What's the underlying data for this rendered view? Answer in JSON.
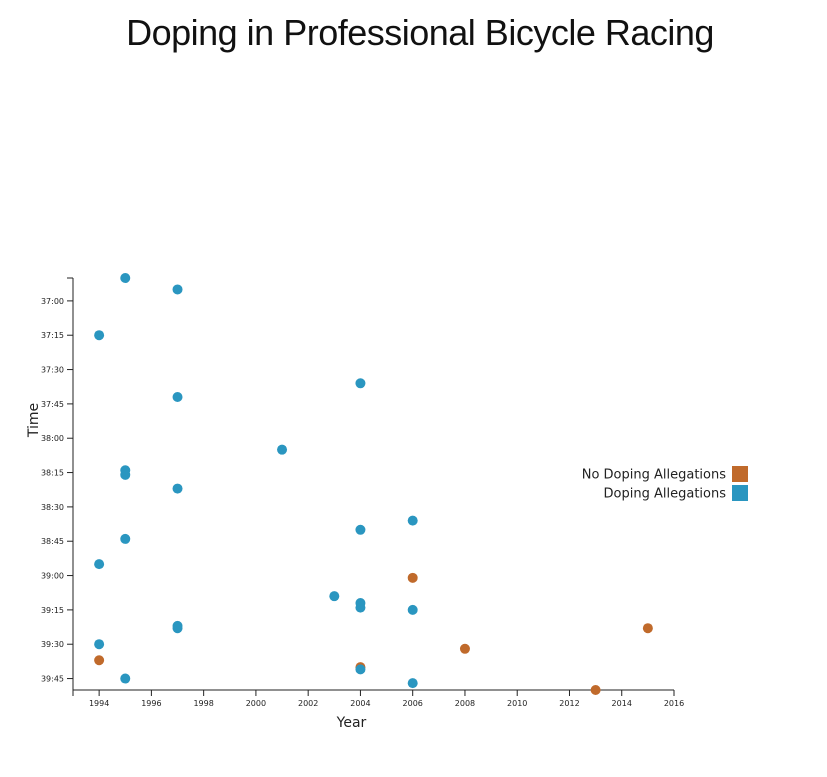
{
  "chart_data": {
    "type": "scatter",
    "title": "Doping in Professional Bicycle Racing",
    "xlabel": "Year",
    "ylabel": "Time",
    "xlim": [
      1993,
      2016
    ],
    "ylim": [
      "36:50",
      "39:50"
    ],
    "x_ticks": [
      "1994",
      "1996",
      "1998",
      "2000",
      "2002",
      "2004",
      "2006",
      "2008",
      "2010",
      "2012",
      "2014",
      "2016"
    ],
    "y_ticks": [
      "37:00",
      "37:15",
      "37:30",
      "37:45",
      "38:00",
      "38:15",
      "38:30",
      "38:45",
      "39:00",
      "39:15",
      "39:30",
      "39:45"
    ],
    "legend": [
      {
        "name": "No Doping Allegations",
        "color": "#c06a2b"
      },
      {
        "name": "Doping Allegations",
        "color": "#2a96c0"
      }
    ],
    "legend_position": "right",
    "series": [
      {
        "name": "No Doping Allegations",
        "color": "#c06a2b",
        "points": [
          {
            "x": 1994,
            "y": "39:37"
          },
          {
            "x": 2004,
            "y": "39:40"
          },
          {
            "x": 2006,
            "y": "39:01"
          },
          {
            "x": 2008,
            "y": "39:32"
          },
          {
            "x": 2013,
            "y": "39:50"
          },
          {
            "x": 2015,
            "y": "39:23"
          }
        ]
      },
      {
        "name": "Doping Allegations",
        "color": "#2a96c0",
        "points": [
          {
            "x": 1995,
            "y": "36:50"
          },
          {
            "x": 1997,
            "y": "36:55"
          },
          {
            "x": 1994,
            "y": "37:15"
          },
          {
            "x": 2004,
            "y": "37:36"
          },
          {
            "x": 1997,
            "y": "37:42"
          },
          {
            "x": 2001,
            "y": "38:05"
          },
          {
            "x": 1995,
            "y": "38:14"
          },
          {
            "x": 1995,
            "y": "38:16"
          },
          {
            "x": 1997,
            "y": "38:22"
          },
          {
            "x": 2006,
            "y": "38:36"
          },
          {
            "x": 2004,
            "y": "38:40"
          },
          {
            "x": 1995,
            "y": "38:44"
          },
          {
            "x": 1994,
            "y": "38:55"
          },
          {
            "x": 2003,
            "y": "39:09"
          },
          {
            "x": 2004,
            "y": "39:12"
          },
          {
            "x": 2004,
            "y": "39:14"
          },
          {
            "x": 2006,
            "y": "39:15"
          },
          {
            "x": 1997,
            "y": "39:22"
          },
          {
            "x": 1997,
            "y": "39:23"
          },
          {
            "x": 1994,
            "y": "39:30"
          },
          {
            "x": 2004,
            "y": "39:41"
          },
          {
            "x": 1995,
            "y": "39:45"
          },
          {
            "x": 2006,
            "y": "39:47"
          }
        ]
      }
    ]
  }
}
